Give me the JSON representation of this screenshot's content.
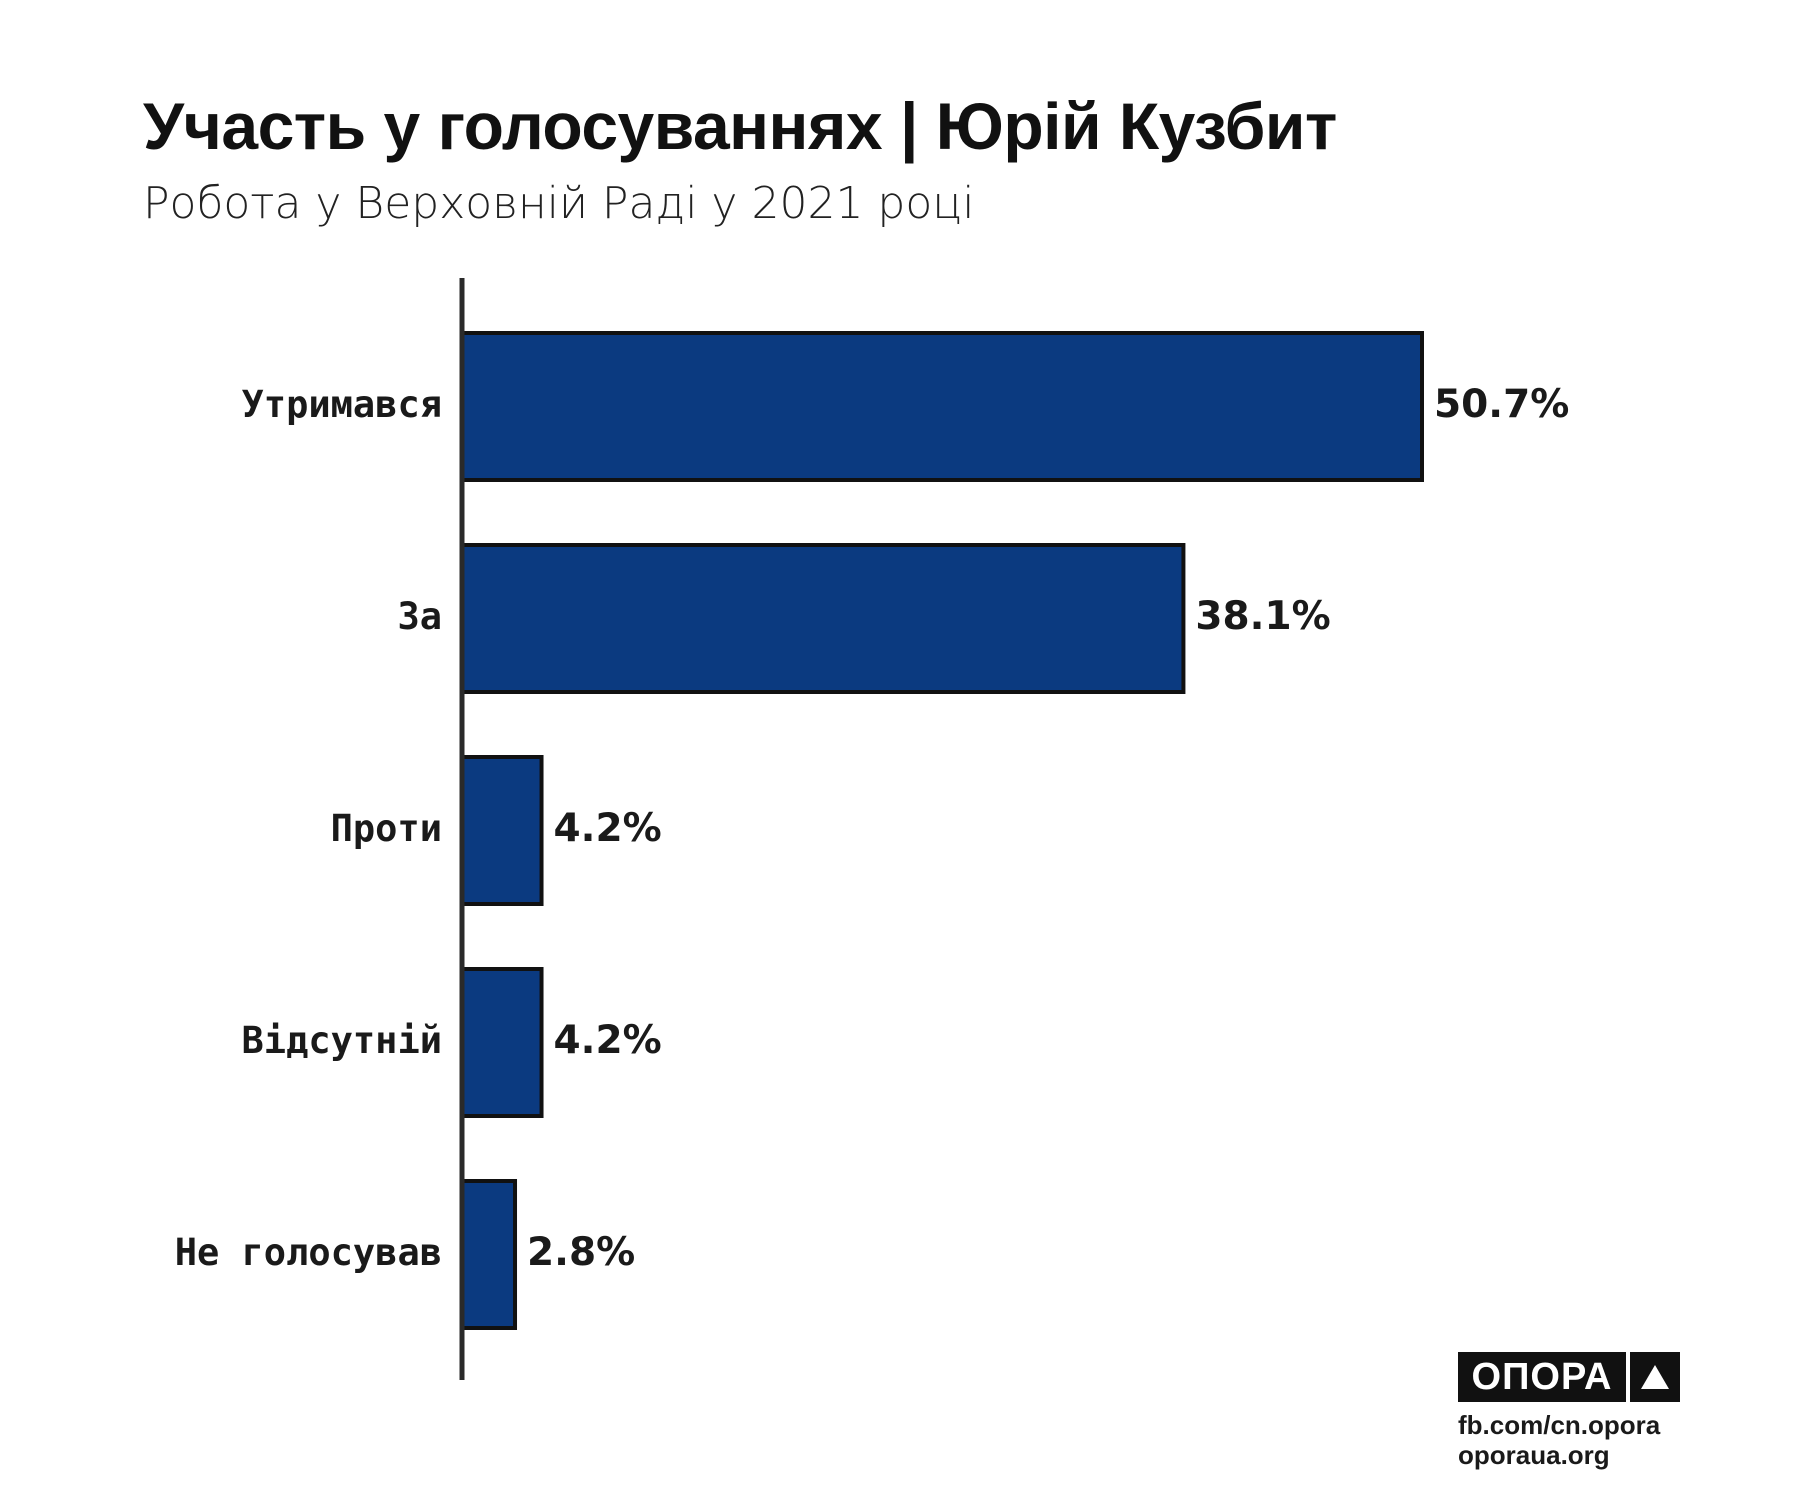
{
  "chart_data": {
    "type": "bar",
    "orientation": "horizontal",
    "title": "Участь у голосуваннях | Юрій Кузбит",
    "subtitle": "Робота у Верховній Раді у 2021 році",
    "categories": [
      "Утримався",
      "За",
      "Проти",
      "Відсутній",
      "Не голосував"
    ],
    "values": [
      50.7,
      38.1,
      4.2,
      4.2,
      2.8
    ],
    "value_labels": [
      "50.7%",
      "38.1%",
      "4.2%",
      "4.2%",
      "2.8%"
    ],
    "xlim": [
      0,
      50.7
    ],
    "grid": false,
    "legend": "none",
    "bar_color": "#0b3a80",
    "bar_edge_color": "#111111"
  },
  "branding": {
    "logo_text": "ОПОРА",
    "source_fb": "fb.com/cn.opora",
    "source_site": "oporaua.org"
  }
}
